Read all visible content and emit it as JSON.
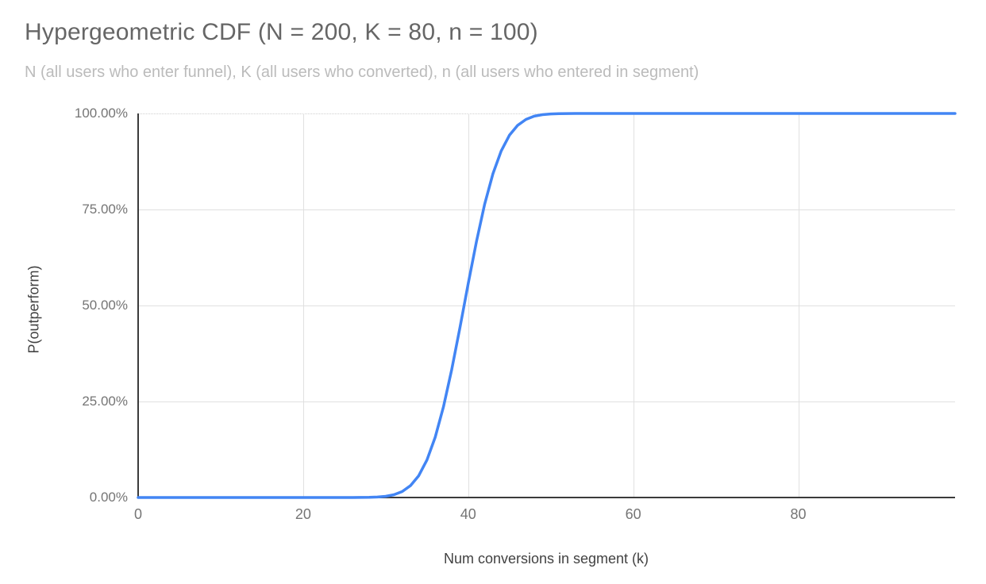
{
  "chart": {
    "title": "Hypergeometric CDF (N = 200, K = 80, n = 100)",
    "subtitle": "N (all users who enter funnel), K (all users who converted), n (all users who entered in segment)",
    "x_axis_title": "Num conversions in segment (k)",
    "y_axis_title": "P(outperform)"
  },
  "colors": {
    "line": "#4285f4",
    "title": "#666666",
    "subtitle": "#bbbbbb",
    "tick": "#757575",
    "axis_title": "#424242",
    "grid": "#e0e0e0",
    "axis_line": "#3b3b3b",
    "background": "#ffffff"
  },
  "chart_data": {
    "type": "line",
    "title": "Hypergeometric CDF (N = 200, K = 80, n = 100)",
    "subtitle": "N (all users who enter funnel), K (all users who converted), n (all users who entered in segment)",
    "xlabel": "Num conversions in segment (k)",
    "ylabel": "P(outperform)",
    "xlim": [
      0,
      99
    ],
    "ylim": [
      0,
      1
    ],
    "grid": true,
    "legend": "none",
    "x_ticks": [
      {
        "value": 0,
        "label": "0"
      },
      {
        "value": 20,
        "label": "20"
      },
      {
        "value": 40,
        "label": "40"
      },
      {
        "value": 60,
        "label": "60"
      },
      {
        "value": 80,
        "label": "80"
      }
    ],
    "y_ticks": [
      {
        "value": 0.0,
        "label": "0.00%"
      },
      {
        "value": 0.25,
        "label": "25.00%"
      },
      {
        "value": 0.5,
        "label": "50.00%"
      },
      {
        "value": 0.75,
        "label": "75.00%"
      },
      {
        "value": 1.0,
        "label": "100.00%"
      }
    ],
    "series": [
      {
        "name": "P(outperform)",
        "color": "#4285f4",
        "x": [
          0,
          1,
          2,
          3,
          4,
          5,
          6,
          7,
          8,
          9,
          10,
          11,
          12,
          13,
          14,
          15,
          16,
          17,
          18,
          19,
          20,
          21,
          22,
          23,
          24,
          25,
          26,
          27,
          28,
          29,
          30,
          31,
          32,
          33,
          34,
          35,
          36,
          37,
          38,
          39,
          40,
          41,
          42,
          43,
          44,
          45,
          46,
          47,
          48,
          49,
          50,
          51,
          52,
          53,
          54,
          55,
          56,
          57,
          58,
          59,
          60,
          61,
          62,
          63,
          64,
          65,
          66,
          67,
          68,
          69,
          70,
          71,
          72,
          73,
          74,
          75,
          76,
          77,
          78,
          79,
          80,
          81,
          82,
          83,
          84,
          85,
          86,
          87,
          88,
          89,
          90,
          91,
          92,
          93,
          94,
          95,
          96,
          97,
          98,
          99
        ],
        "y": [
          0,
          0,
          0,
          0,
          0,
          0,
          0,
          0,
          0,
          0,
          0,
          0,
          0,
          0,
          0,
          0,
          0,
          0,
          0,
          0,
          0,
          0,
          0,
          0,
          0,
          0,
          0.0001,
          0.0002,
          0.0005,
          0.0013,
          0.0031,
          0.0072,
          0.0154,
          0.0307,
          0.0567,
          0.0977,
          0.157,
          0.2361,
          0.3332,
          0.4428,
          0.5572,
          0.6668,
          0.7639,
          0.843,
          0.9023,
          0.9433,
          0.9693,
          0.9846,
          0.9929,
          0.9969,
          0.9988,
          0.9995,
          0.9998,
          0.9999,
          1,
          1,
          1,
          1,
          1,
          1,
          1,
          1,
          1,
          1,
          1,
          1,
          1,
          1,
          1,
          1,
          1,
          1,
          1,
          1,
          1,
          1,
          1,
          1,
          1,
          1,
          1,
          1,
          1,
          1,
          1,
          1,
          1,
          1,
          1,
          1,
          1,
          1,
          1,
          1,
          1,
          1,
          1,
          1,
          1,
          1
        ]
      }
    ]
  }
}
